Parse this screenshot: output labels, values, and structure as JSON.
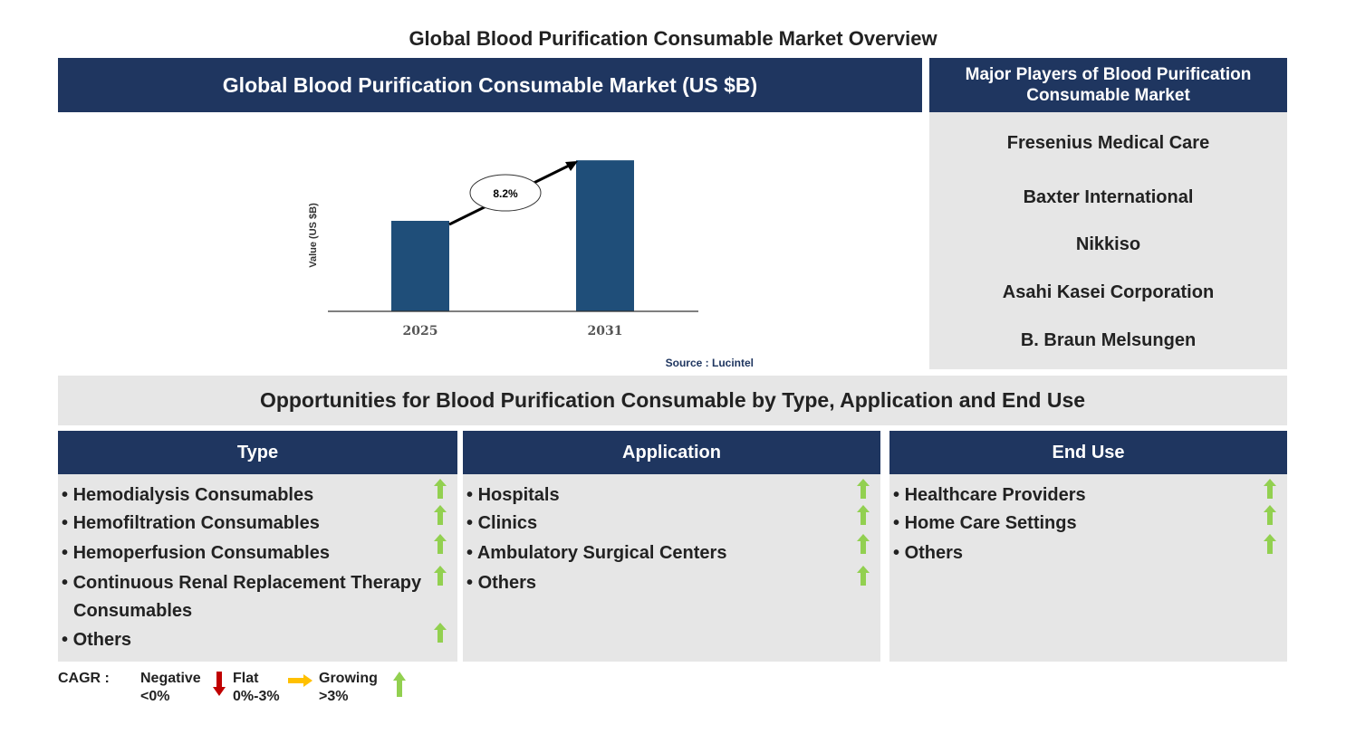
{
  "title": "Global Blood Purification Consumable Market Overview",
  "market_header": "Global Blood Purification Consumable Market (US $B)",
  "players_header": "Major Players of Blood Purification Consumable Market",
  "players": [
    "Fresenius Medical Care",
    "Baxter International",
    "Nikkiso",
    "Asahi Kasei Corporation",
    "B. Braun Melsungen"
  ],
  "chart_data": {
    "type": "bar",
    "categories": [
      "2025",
      "2031"
    ],
    "ylabel": "Value (US $B)",
    "annotation": "8.2%",
    "source": "Source : Lucintel",
    "bar_color": "#1f4e79"
  },
  "opportunities_header": "Opportunities for Blood Purification Consumable by Type, Application and End Use",
  "columns": [
    {
      "title": "Type",
      "items": [
        "Hemodialysis Consumables",
        "Hemofiltration Consumables",
        "Hemoperfusion Consumables",
        "Continuous Renal Replacement Therapy Consumables",
        "Others"
      ],
      "trend": [
        "growing",
        "growing",
        "growing",
        "growing",
        "growing"
      ]
    },
    {
      "title": "Application",
      "items": [
        "Hospitals",
        "Clinics",
        "Ambulatory Surgical Centers",
        "Others"
      ],
      "trend": [
        "growing",
        "growing",
        "growing",
        "growing"
      ]
    },
    {
      "title": "End Use",
      "items": [
        "Healthcare Providers",
        "Home Care Settings",
        "Others"
      ],
      "trend": [
        "growing",
        "growing",
        "growing"
      ]
    }
  ],
  "legend": {
    "label": "CAGR :",
    "negative": "Negative",
    "negative_range": "<0%",
    "flat": "Flat",
    "flat_range": "0%-3%",
    "growing": "Growing",
    "growing_range": ">3%",
    "colors": {
      "negative": "#c00000",
      "flat": "#ffc000",
      "growing": "#92d050"
    }
  }
}
